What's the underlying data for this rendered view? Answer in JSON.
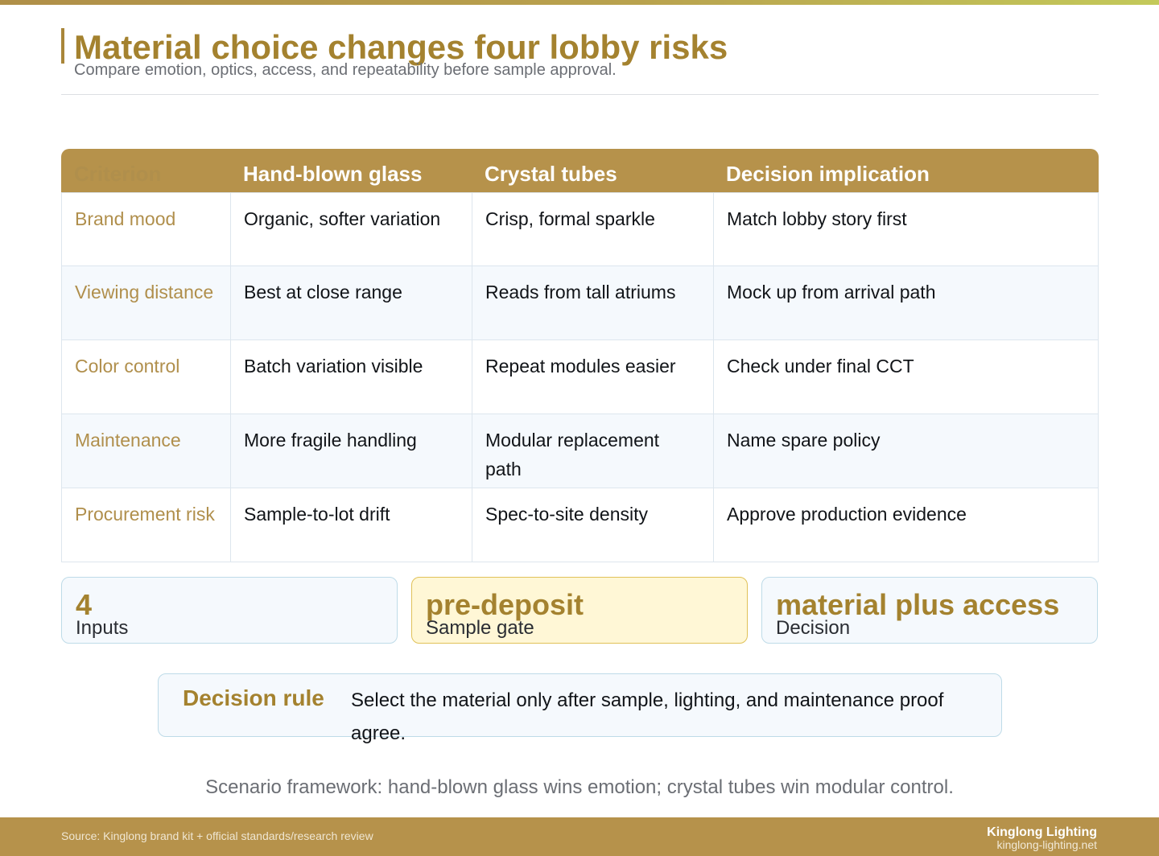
{
  "header": {
    "title": "Material choice changes four lobby risks",
    "subtitle": "Compare emotion, optics, access, and repeatability before sample approval."
  },
  "table": {
    "columns": [
      "Criterion",
      "Hand-blown glass",
      "Crystal tubes",
      "Decision implication"
    ],
    "rows": [
      [
        "Brand mood",
        "Organic, softer variation",
        "Crisp, formal sparkle",
        "Match lobby story first"
      ],
      [
        "Viewing distance",
        "Best at close range",
        "Reads from tall atriums",
        "Mock up from arrival path"
      ],
      [
        "Color control",
        "Batch variation visible",
        "Repeat modules easier",
        "Check under final CCT"
      ],
      [
        "Maintenance",
        "More fragile handling",
        "Modular replacement path",
        "Name spare policy"
      ],
      [
        "Procurement risk",
        "Sample-to-lot drift",
        "Spec-to-site density",
        "Approve production evidence"
      ]
    ]
  },
  "kpis": [
    {
      "value": "4",
      "label": "Inputs"
    },
    {
      "value": "pre-deposit",
      "label": "Sample gate"
    },
    {
      "value": "material plus access",
      "label": "Decision"
    }
  ],
  "decision_rule": {
    "title": "Decision rule",
    "text": "Select the material only after sample, lighting, and maintenance proof agree."
  },
  "framework_note": "Scenario framework: hand-blown glass wins emotion; crystal tubes win modular control.",
  "footer": {
    "source": "Source: Kinglong brand kit + official standards/research review",
    "brand": "Kinglong Lighting",
    "site": "kinglong-lighting.net"
  },
  "colors": {
    "accent_gold": "#b6924b",
    "title_gold": "#a4822f",
    "highlight_fill": "#fff7d6",
    "card_fill": "#f5f9fd",
    "card_border": "#bedbe8"
  }
}
